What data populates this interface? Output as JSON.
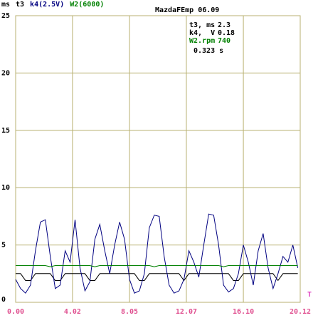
{
  "chart_data": {
    "type": "line",
    "title": "MazdaFEmp 06.09",
    "y_label": "ms",
    "x": [
      0.0,
      0.35,
      0.7,
      1.05,
      1.4,
      1.75,
      2.1,
      2.45,
      2.8,
      3.15,
      3.5,
      3.85,
      4.2,
      4.55,
      4.9,
      5.25,
      5.6,
      5.95,
      6.3,
      6.65,
      7.0,
      7.35,
      7.7,
      8.05,
      8.4,
      8.75,
      9.1,
      9.45,
      9.8,
      10.15,
      10.5,
      10.85,
      11.2,
      11.55,
      11.9,
      12.25,
      12.6,
      12.95,
      13.3,
      13.65,
      14.0,
      14.35,
      14.7,
      15.05,
      15.4,
      15.75,
      16.1,
      16.45,
      16.8,
      17.15,
      17.5,
      17.85,
      18.2,
      18.55,
      18.9,
      19.25,
      19.6,
      19.95
    ],
    "series": [
      {
        "name": "t3",
        "color": "#000000",
        "values": [
          2.5,
          2.5,
          1.9,
          1.9,
          2.5,
          2.5,
          2.5,
          2.5,
          1.9,
          1.9,
          2.5,
          2.5,
          2.5,
          2.5,
          2.5,
          1.9,
          1.9,
          2.5,
          2.5,
          2.5,
          2.5,
          2.5,
          2.5,
          2.5,
          2.5,
          1.9,
          1.9,
          2.5,
          2.5,
          2.5,
          2.5,
          2.5,
          2.5,
          2.5,
          1.9,
          2.5,
          2.5,
          2.5,
          2.5,
          2.5,
          2.5,
          2.5,
          2.5,
          2.5,
          1.9,
          1.9,
          2.5,
          2.5,
          2.5,
          2.5,
          2.5,
          2.5,
          2.5,
          1.9,
          2.5,
          2.5,
          2.5,
          2.5
        ]
      },
      {
        "name": "k4(2.5V)",
        "color": "#000080",
        "values": [
          2.0,
          1.2,
          0.8,
          1.5,
          4.5,
          7.0,
          7.2,
          4.0,
          1.2,
          1.5,
          4.5,
          3.5,
          7.2,
          3.0,
          1.0,
          1.8,
          5.5,
          6.8,
          4.5,
          2.5,
          5.0,
          7.0,
          5.5,
          2.0,
          0.8,
          1.0,
          2.5,
          6.5,
          7.6,
          7.5,
          4.0,
          1.5,
          0.8,
          1.0,
          2.0,
          4.5,
          3.5,
          2.2,
          5.0,
          7.7,
          7.6,
          5.0,
          1.5,
          0.9,
          1.2,
          2.5,
          5.0,
          3.5,
          1.5,
          4.5,
          6.0,
          3.0,
          1.2,
          2.5,
          4.0,
          3.5,
          5.0,
          3.0
        ]
      },
      {
        "name": "W2(6000)",
        "color": "#008000",
        "values": [
          3.2,
          3.2,
          3.2,
          3.2,
          3.2,
          3.2,
          3.2,
          3.1,
          3.2,
          3.2,
          3.2,
          3.2,
          3.2,
          3.2,
          3.2,
          3.2,
          3.1,
          3.2,
          3.2,
          3.2,
          3.2,
          3.2,
          3.2,
          3.2,
          3.2,
          3.2,
          3.2,
          3.2,
          3.1,
          3.2,
          3.2,
          3.2,
          3.2,
          3.2,
          3.2,
          3.2,
          3.2,
          3.2,
          3.2,
          3.2,
          3.2,
          3.2,
          3.1,
          3.2,
          3.2,
          3.2,
          3.2,
          3.2,
          3.2,
          3.2,
          3.2,
          3.2,
          3.2,
          3.2,
          3.2,
          3.2,
          3.2,
          3.2
        ]
      }
    ],
    "xlim": [
      0,
      20.12
    ],
    "xticks": [
      {
        "value": 0,
        "label": "0.00"
      },
      4.02,
      8.05,
      12.07,
      {
        "value": 16.1,
        "label": "16.10"
      },
      20.12
    ],
    "ylim": [
      0,
      25
    ],
    "yticks": [
      0,
      5,
      10,
      15,
      20,
      25
    ],
    "grid": true,
    "readout": [
      {
        "label": "t3, ms",
        "value": 2.3
      },
      {
        "label": "k4,  V",
        "value": 0.18
      },
      {
        "label": "W2.rpm",
        "value": 740
      }
    ],
    "readout_time": "0.323 s",
    "x_marker": "T"
  }
}
